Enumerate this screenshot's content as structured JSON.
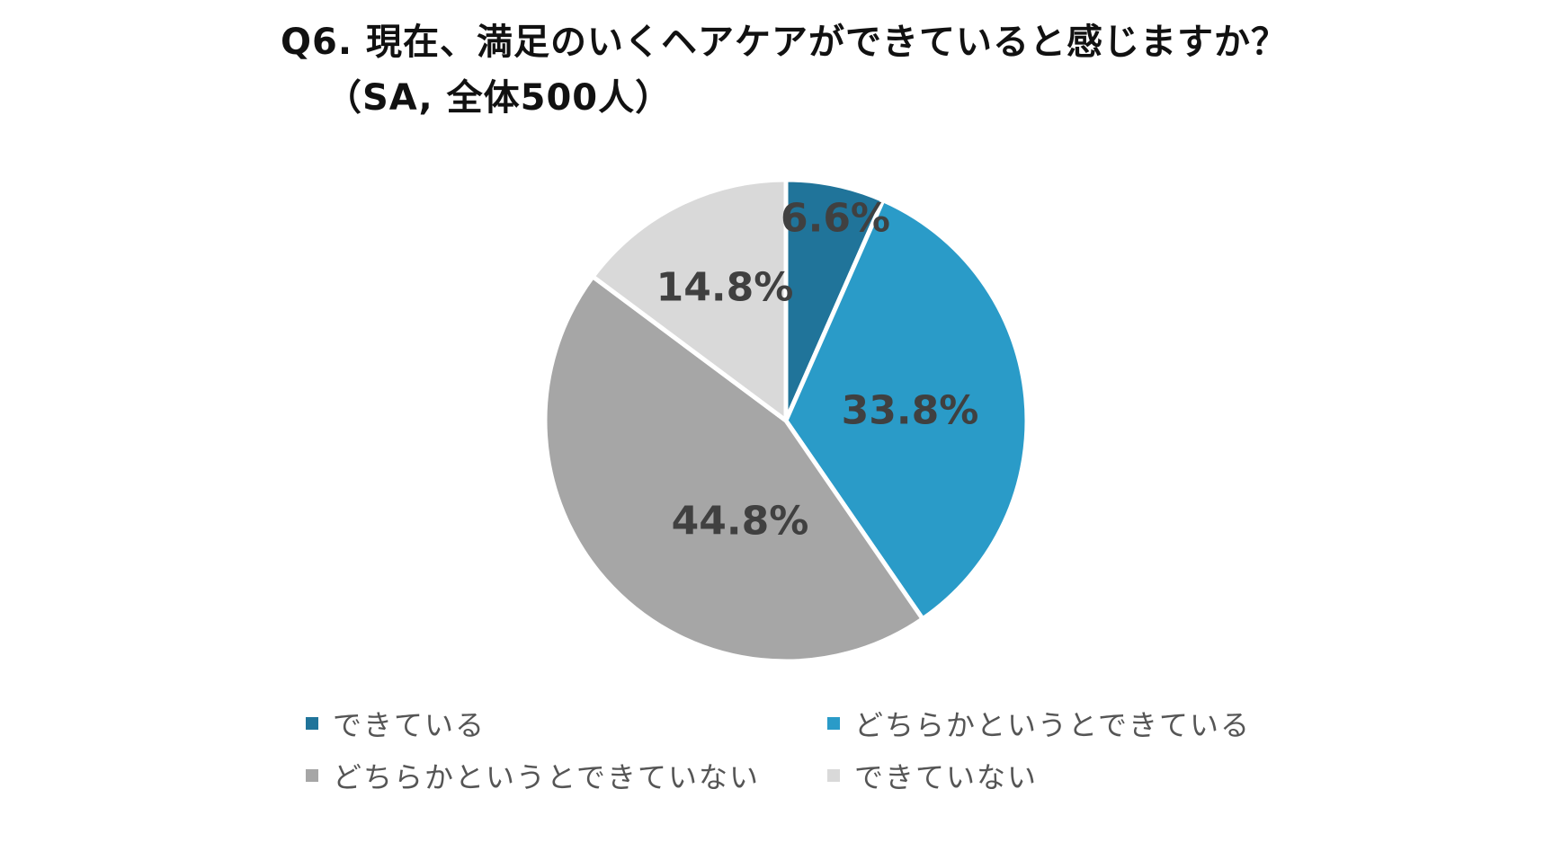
{
  "chart_data": {
    "type": "pie",
    "title": "Q6. 現在、満足のいくヘアケアができていると感じますか？",
    "subtitle": "（SA, 全体500人）",
    "categories": [
      "できている",
      "どちらかというとできている",
      "どちらかというとできていない",
      "できていない"
    ],
    "values": [
      6.6,
      33.8,
      44.8,
      14.8
    ],
    "data_labels": [
      "6.6%",
      "33.8%",
      "44.8%",
      "14.8%"
    ],
    "colors": [
      "#20749a",
      "#2a9bc8",
      "#a6a6a6",
      "#d9d9d9"
    ],
    "legend_position": "bottom",
    "start_angle": "12 o'clock",
    "direction": "clockwise"
  }
}
